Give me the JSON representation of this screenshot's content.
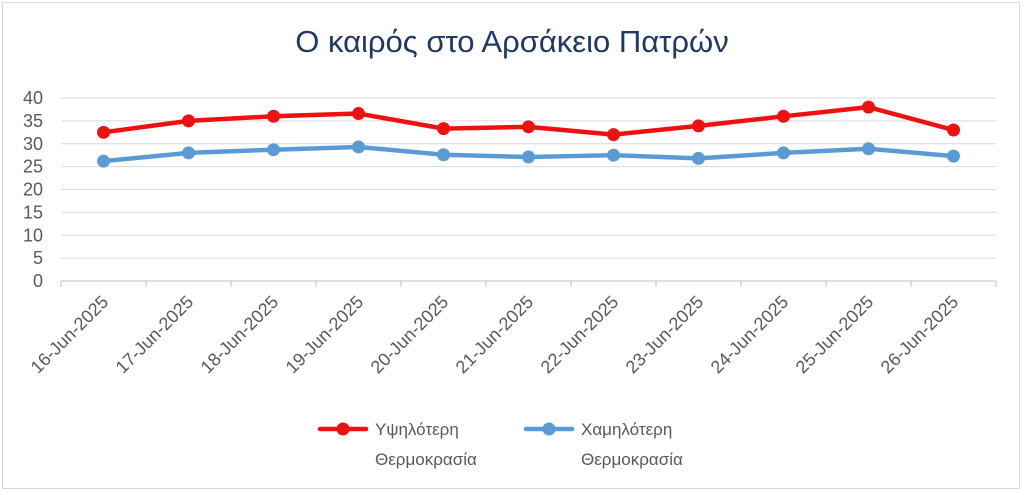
{
  "chart_data": {
    "type": "line",
    "title": "Ο καιρός στο Αρσάκειο Πατρών",
    "categories": [
      "16-Jun-2025",
      "17-Jun-2025",
      "18-Jun-2025",
      "19-Jun-2025",
      "20-Jun-2025",
      "21-Jun-2025",
      "22-Jun-2025",
      "23-Jun-2025",
      "24-Jun-2025",
      "25-Jun-2025",
      "26-Jun-2025"
    ],
    "series": [
      {
        "name": "Υψηλότερη Θερμοκρασία",
        "legend_lines": [
          "Υψηλότερη",
          "Θερμοκρασία"
        ],
        "color": "#ee1111",
        "values": [
          32.5,
          35,
          36,
          36.6,
          33.3,
          33.7,
          32,
          33.9,
          36,
          38,
          33
        ]
      },
      {
        "name": "Χαμηλότερη Θερμοκρασία",
        "legend_lines": [
          "Χαμηλότερη",
          "Θερμοκρασία"
        ],
        "color": "#5b9bd5",
        "values": [
          26.2,
          28,
          28.7,
          29.3,
          27.6,
          27.1,
          27.5,
          26.8,
          28,
          28.9,
          27.3
        ]
      }
    ],
    "ylim": [
      0,
      40
    ],
    "yticks": [
      "0",
      "5",
      "10",
      "15",
      "20",
      "25",
      "30",
      "35",
      "40"
    ],
    "grid": true,
    "legend_position": "bottom"
  }
}
